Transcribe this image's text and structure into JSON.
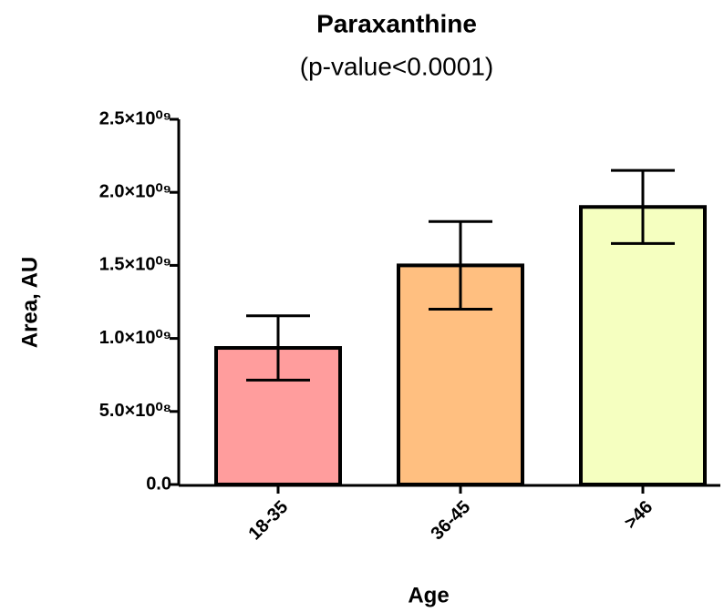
{
  "chart_data": {
    "type": "bar",
    "title": "Paraxanthine",
    "subtitle": "(p-value<0.0001)",
    "x_label": "Age",
    "y_label": "Area, AU",
    "categories": [
      "18-35",
      "36-45",
      ">46"
    ],
    "values": [
      935000000,
      1500000000,
      1900000000
    ],
    "errors": [
      220000000,
      300000000,
      250000000
    ],
    "colors": [
      "#ff9d9d",
      "#ffbf80",
      "#f5ffc0"
    ],
    "ylim": [
      0,
      2500000000
    ],
    "yticks": [
      {
        "value": 0,
        "label": "0.0"
      },
      {
        "value": 500000000,
        "label": "5.0×10⁰⁸"
      },
      {
        "value": 1000000000,
        "label": "1.0×10⁰⁹"
      },
      {
        "value": 1500000000,
        "label": "1.5×10⁰⁹"
      },
      {
        "value": 2000000000,
        "label": "2.0×10⁰⁹"
      },
      {
        "value": 2500000000,
        "label": "2.5×10⁰⁹"
      }
    ]
  }
}
